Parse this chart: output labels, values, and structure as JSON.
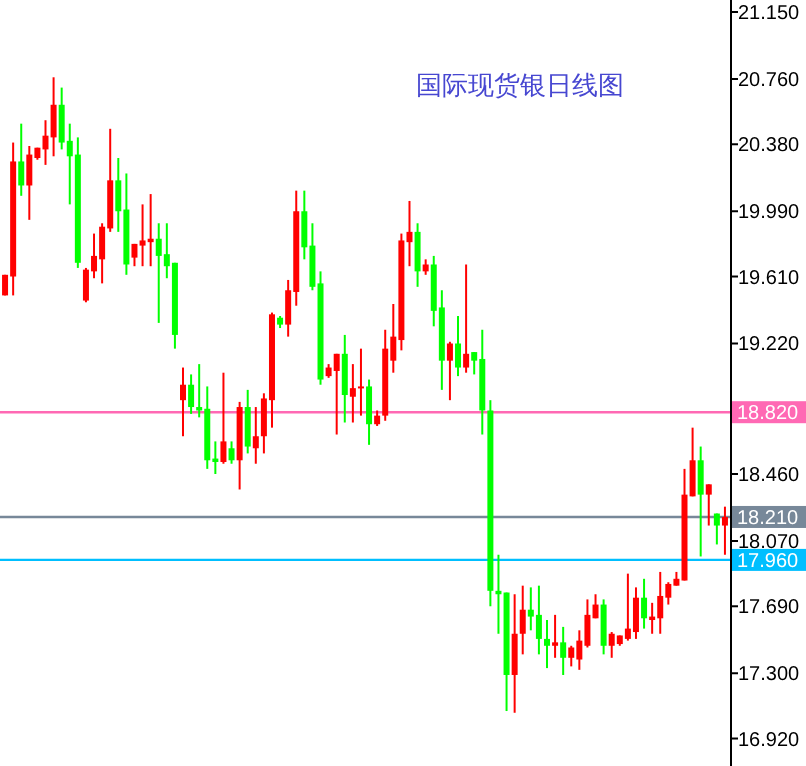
{
  "chart_data": {
    "type": "candlestick",
    "title": "国际现货银日线图",
    "categories": [
      null,
      null,
      null,
      null,
      null,
      null,
      null,
      null,
      null,
      null,
      null,
      null,
      null,
      null,
      null,
      null,
      null,
      null,
      null,
      null,
      null,
      null,
      null,
      null,
      null,
      null,
      null,
      null,
      null,
      null,
      null,
      null,
      null,
      null,
      null,
      null,
      null,
      null,
      null,
      null,
      null,
      null,
      null,
      null,
      null,
      null,
      null,
      null,
      null,
      null,
      null,
      null,
      null,
      null,
      null,
      null,
      null,
      null,
      null,
      null,
      null,
      null,
      null,
      null,
      null,
      null,
      null,
      null,
      null,
      null,
      null,
      null,
      null,
      null,
      null,
      null,
      null,
      null,
      null,
      null,
      null,
      null,
      null,
      null,
      null,
      null,
      null,
      null,
      null,
      null
    ],
    "ohlc": [
      [
        19.5,
        19.62,
        19.5,
        19.62
      ],
      [
        19.61,
        20.39,
        19.5,
        20.28
      ],
      [
        20.28,
        20.5,
        20.08,
        20.14
      ],
      [
        20.14,
        20.37,
        19.94,
        20.32
      ],
      [
        20.3,
        20.36,
        20.29,
        20.36
      ],
      [
        20.35,
        20.52,
        20.26,
        20.43
      ],
      [
        20.42,
        20.77,
        20.31,
        20.61
      ],
      [
        20.61,
        20.71,
        20.35,
        20.39
      ],
      [
        20.4,
        20.5,
        20.03,
        20.31
      ],
      [
        20.32,
        20.42,
        19.66,
        19.69
      ],
      [
        19.47,
        19.66,
        19.46,
        19.65
      ],
      [
        19.64,
        19.86,
        19.6,
        19.73
      ],
      [
        19.71,
        19.92,
        19.57,
        19.9
      ],
      [
        19.89,
        20.47,
        19.87,
        20.17
      ],
      [
        20.17,
        20.3,
        19.87,
        19.99
      ],
      [
        20.0,
        20.21,
        19.62,
        19.68
      ],
      [
        19.72,
        19.8,
        19.67,
        19.8
      ],
      [
        19.79,
        20.03,
        19.67,
        19.82
      ],
      [
        19.81,
        20.09,
        19.67,
        19.83
      ],
      [
        19.83,
        19.92,
        19.34,
        19.73
      ],
      [
        19.74,
        19.92,
        19.6,
        19.67
      ],
      [
        19.69,
        19.69,
        19.19,
        19.27
      ],
      [
        18.89,
        19.08,
        18.68,
        18.98
      ],
      [
        18.98,
        19.04,
        18.81,
        18.85
      ],
      [
        18.85,
        19.1,
        18.79,
        18.83
      ],
      [
        18.84,
        18.97,
        18.49,
        18.54
      ],
      [
        18.55,
        18.65,
        18.46,
        18.53
      ],
      [
        18.53,
        19.05,
        18.52,
        18.65
      ],
      [
        18.61,
        18.65,
        18.52,
        18.54
      ],
      [
        18.54,
        18.88,
        18.37,
        18.85
      ],
      [
        18.85,
        18.95,
        18.58,
        18.62
      ],
      [
        18.61,
        18.85,
        18.52,
        18.68
      ],
      [
        18.68,
        18.93,
        18.58,
        18.9
      ],
      [
        18.89,
        19.4,
        18.73,
        19.39
      ],
      [
        19.37,
        19.38,
        19.31,
        19.33
      ],
      [
        19.33,
        19.59,
        19.26,
        19.53
      ],
      [
        19.52,
        20.11,
        19.44,
        19.99
      ],
      [
        19.99,
        20.11,
        19.71,
        19.78
      ],
      [
        19.79,
        19.92,
        19.53,
        19.55
      ],
      [
        19.57,
        19.64,
        18.98,
        19.01
      ],
      [
        19.03,
        19.1,
        19.02,
        19.08
      ],
      [
        19.06,
        19.16,
        18.69,
        19.16
      ],
      [
        19.16,
        19.27,
        18.76,
        18.92
      ],
      [
        18.91,
        19.1,
        18.76,
        18.96
      ],
      [
        18.96,
        19.19,
        18.8,
        18.97
      ],
      [
        18.97,
        19.01,
        18.63,
        18.75
      ],
      [
        18.75,
        18.83,
        18.74,
        18.8
      ],
      [
        18.8,
        19.3,
        18.77,
        19.19
      ],
      [
        19.12,
        19.45,
        19.05,
        19.26
      ],
      [
        19.24,
        19.86,
        19.18,
        19.82
      ],
      [
        19.81,
        20.05,
        19.67,
        19.87
      ],
      [
        19.87,
        19.92,
        19.55,
        19.64
      ],
      [
        19.64,
        19.71,
        19.62,
        19.68
      ],
      [
        19.68,
        19.73,
        19.32,
        19.41
      ],
      [
        19.43,
        19.53,
        18.95,
        19.12
      ],
      [
        19.12,
        19.23,
        18.89,
        19.22
      ],
      [
        19.22,
        19.38,
        19.03,
        19.08
      ],
      [
        19.08,
        19.68,
        19.05,
        19.16
      ],
      [
        19.17,
        19.17,
        19.04,
        19.12
      ],
      [
        19.13,
        19.3,
        18.69,
        18.83
      ],
      [
        18.83,
        18.89,
        17.69,
        17.78
      ],
      [
        17.78,
        17.99,
        17.53,
        17.76
      ],
      [
        17.77,
        17.77,
        17.08,
        17.29
      ],
      [
        17.29,
        17.76,
        17.07,
        17.53
      ],
      [
        17.53,
        17.81,
        17.41,
        17.67
      ],
      [
        17.67,
        17.8,
        17.55,
        17.63
      ],
      [
        17.64,
        17.81,
        17.41,
        17.5
      ],
      [
        17.5,
        17.61,
        17.33,
        17.46
      ],
      [
        17.46,
        17.64,
        17.39,
        17.48
      ],
      [
        17.48,
        17.57,
        17.29,
        17.39
      ],
      [
        17.39,
        17.46,
        17.34,
        17.45
      ],
      [
        17.38,
        17.55,
        17.32,
        17.49
      ],
      [
        17.46,
        17.73,
        17.45,
        17.64
      ],
      [
        17.62,
        17.76,
        17.62,
        17.7
      ],
      [
        17.7,
        17.73,
        17.41,
        17.46
      ],
      [
        17.46,
        17.54,
        17.39,
        17.53
      ],
      [
        17.47,
        17.52,
        17.46,
        17.52
      ],
      [
        17.5,
        17.88,
        17.49,
        17.56
      ],
      [
        17.54,
        17.8,
        17.5,
        17.74
      ],
      [
        17.74,
        17.85,
        17.56,
        17.62
      ],
      [
        17.61,
        17.71,
        17.53,
        17.63
      ],
      [
        17.62,
        17.89,
        17.53,
        17.75
      ],
      [
        17.74,
        17.83,
        17.7,
        17.82
      ],
      [
        17.81,
        17.89,
        17.81,
        17.85
      ],
      [
        17.84,
        18.49,
        17.84,
        18.34
      ],
      [
        18.33,
        18.73,
        18.33,
        18.54
      ],
      [
        18.54,
        18.62,
        17.98,
        18.34
      ],
      [
        18.34,
        18.4,
        18.16,
        18.4
      ],
      [
        18.23,
        18.23,
        18.05,
        18.16
      ],
      [
        18.16,
        18.27,
        17.99,
        18.21
      ]
    ],
    "colors": [
      "#ff0000",
      "#ff0000",
      "#00ff00",
      "#ff0000",
      "#ff0000",
      "#ff0000",
      "#ff0000",
      "#00ff00",
      "#00ff00",
      "#00ff00",
      "#ff0000",
      "#ff0000",
      "#ff0000",
      "#ff0000",
      "#00ff00",
      "#00ff00",
      "#ff0000",
      "#ff0000",
      "#ff0000",
      "#00ff00",
      "#00ff00",
      "#00ff00",
      "#ff0000",
      "#00ff00",
      "#00ff00",
      "#00ff00",
      "#00ff00",
      "#ff0000",
      "#00ff00",
      "#ff0000",
      "#00ff00",
      "#ff0000",
      "#ff0000",
      "#ff0000",
      "#00ff00",
      "#ff0000",
      "#ff0000",
      "#00ff00",
      "#00ff00",
      "#00ff00",
      "#ff0000",
      "#ff0000",
      "#00ff00",
      "#ff0000",
      "#ff0000",
      "#00ff00",
      "#ff0000",
      "#ff0000",
      "#ff0000",
      "#ff0000",
      "#ff0000",
      "#00ff00",
      "#ff0000",
      "#00ff00",
      "#00ff00",
      "#ff0000",
      "#00ff00",
      "#ff0000",
      "#00ff00",
      "#00ff00",
      "#00ff00",
      "#00ff00",
      "#00ff00",
      "#ff0000",
      "#ff0000",
      "#00ff00",
      "#00ff00",
      "#00ff00",
      "#ff0000",
      "#00ff00",
      "#ff0000",
      "#ff0000",
      "#ff0000",
      "#ff0000",
      "#00ff00",
      "#ff0000",
      "#ff0000",
      "#ff0000",
      "#ff0000",
      "#00ff00",
      "#ff0000",
      "#ff0000",
      "#ff0000",
      "#ff0000",
      "#ff0000",
      "#ff0000",
      "#00ff00",
      "#ff0000",
      "#00ff00",
      "#ff0000"
    ],
    "ylim": [
      16.76,
      21.22
    ],
    "yticks": [
      {
        "value": 21.15,
        "label": "21.150"
      },
      {
        "value": 20.76,
        "label": "20.760"
      },
      {
        "value": 20.38,
        "label": "20.380"
      },
      {
        "value": 19.99,
        "label": "19.990"
      },
      {
        "value": 19.61,
        "label": "19.610"
      },
      {
        "value": 19.22,
        "label": "19.220"
      },
      {
        "value": 18.46,
        "label": "18.460"
      },
      {
        "value": 18.07,
        "label": "18.070"
      },
      {
        "value": 17.69,
        "label": "17.690"
      },
      {
        "value": 17.3,
        "label": "17.300"
      },
      {
        "value": 16.92,
        "label": "16.920"
      }
    ],
    "ref_lines": [
      {
        "axis": "y",
        "value": 18.82,
        "label": "18.820",
        "color": "#ff69b4"
      },
      {
        "axis": "y",
        "value": 18.21,
        "label": "18.210",
        "color": "#778899"
      },
      {
        "axis": "y",
        "value": 17.96,
        "label": "17.960",
        "color": "#00bfff"
      }
    ],
    "tick_labels": "y",
    "grid": false
  }
}
